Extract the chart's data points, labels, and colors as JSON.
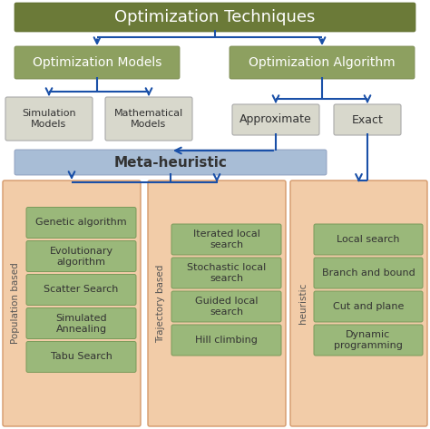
{
  "title": "Optimization Techniques",
  "title_bg": "#6b7a38",
  "title_fg": "#ffffff",
  "level2_bg": "#8da060",
  "level2_fg": "#ffffff",
  "level3_bg": "#d8d8cc",
  "level3_fg": "#333333",
  "meta_bg": "#a8bdd6",
  "meta_fg": "#333333",
  "container_bg": "#f2cca8",
  "container_edge": "#d4996a",
  "item_bg": "#9ab87a",
  "item_fg": "#333333",
  "item_edge": "#7a9a5a",
  "arrow_color": "#1a50a8",
  "level2_nodes": [
    "Optimization Models",
    "Optimization Algorithm"
  ],
  "level3_left": [
    "Simulation\nModels",
    "Mathematical\nModels"
  ],
  "level3_right": [
    "Approximate",
    "Exact"
  ],
  "meta_label": "Meta-heuristic",
  "columns": [
    {
      "label": "Population based",
      "items": [
        "Genetic algorithm",
        "Evolutionary\nalgorithm",
        "Scatter Search",
        "Simulated\nAnnealing",
        "Tabu Search"
      ]
    },
    {
      "label": "Trajectory based",
      "items": [
        "Iterated local\nsearch",
        "Stochastic local\nsearch",
        "Guided local\nsearch",
        "Hill climbing"
      ]
    },
    {
      "label": "heuristic",
      "items": [
        "Local search",
        "Branch and bound",
        "Cut and plane",
        "Dynamic\nprogramming"
      ]
    }
  ]
}
